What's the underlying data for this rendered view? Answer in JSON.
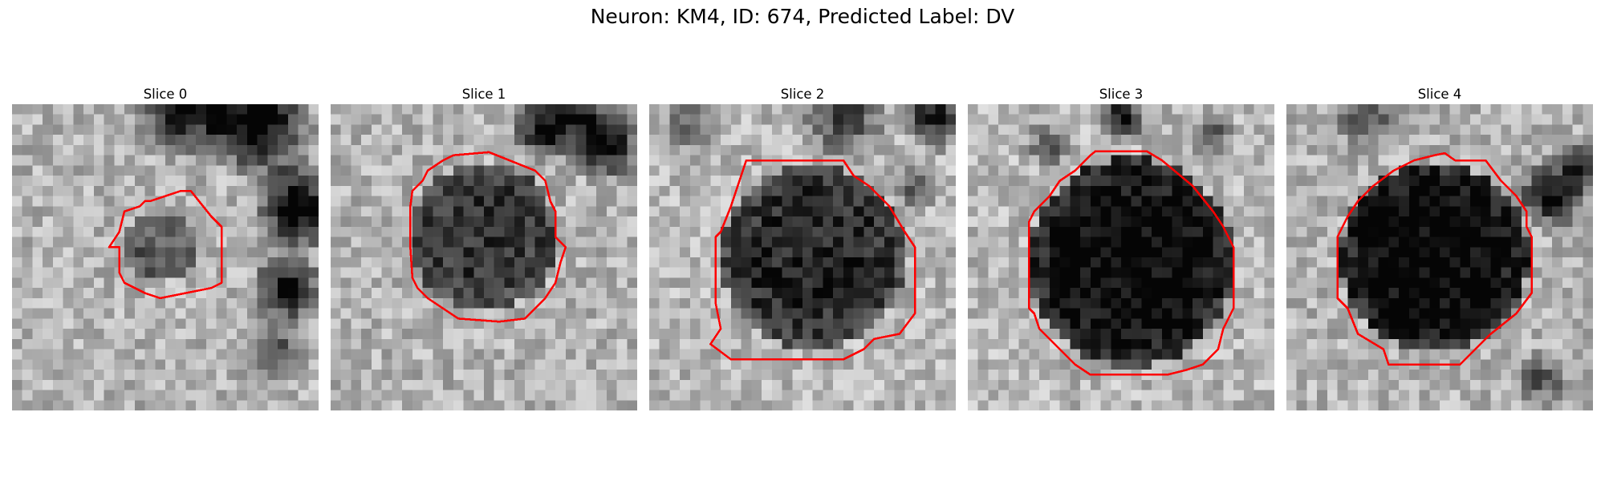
{
  "figure": {
    "title": "Neuron: KM4, ID: 674, Predicted Label: DV"
  },
  "contour_color": "#ff0000",
  "slices": [
    {
      "label": "Slice 0",
      "background": "light gray textured tissue with a dark region at upper-right and right edge",
      "nucleus": "small darker gray patch in the center",
      "contour": "small red octagonal outline around the center patch"
    },
    {
      "label": "Slice 1",
      "background": "light and medium gray texture with dark area at top-right",
      "nucleus": "medium-dark gray round region in center",
      "contour": "red octagonal outline around the round region"
    },
    {
      "label": "Slice 2",
      "background": "light gray texture with dark areas along the top",
      "nucleus": "large dark gray round region in center",
      "contour": "red octagonal outline around the round region"
    },
    {
      "label": "Slice 3",
      "background": "light gray texture with dark vertical band at top center",
      "nucleus": "large very dark round region in center",
      "contour": "large red octagonal outline around the dark region"
    },
    {
      "label": "Slice 4",
      "background": "light gray texture with dark area at top-right",
      "nucleus": "large very dark round region in center",
      "contour": "red octagonal outline around the dark region"
    }
  ]
}
